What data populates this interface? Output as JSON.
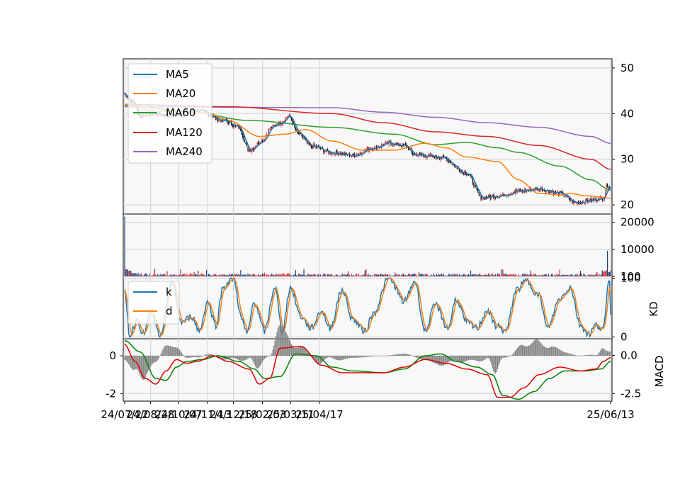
{
  "chart_data": [
    {
      "type": "candlestick",
      "panel": "price",
      "y_axis_side": "right",
      "ylim": [
        18,
        52
      ],
      "yticks": [
        20,
        30,
        40,
        50
      ],
      "grid": true,
      "legend_position": "top-left",
      "legend": [
        "MA5",
        "MA20",
        "MA60",
        "MA120",
        "MA240"
      ],
      "colors": {
        "MA5": "#1f77b4",
        "MA20": "#ff7f0e",
        "MA60": "#2ca02c",
        "MA120": "#d62728",
        "MA240": "#9467bd",
        "up": "#d62728",
        "down": "#000000"
      },
      "close_anchors": [
        [
          0,
          44.2
        ],
        [
          8,
          42.5
        ],
        [
          15,
          39.5
        ],
        [
          25,
          40
        ],
        [
          45,
          39.5
        ],
        [
          70,
          40.8
        ],
        [
          95,
          38.5
        ],
        [
          110,
          37
        ],
        [
          120,
          32
        ],
        [
          132,
          34
        ],
        [
          142,
          37
        ],
        [
          150,
          38
        ],
        [
          158,
          39.5
        ],
        [
          168,
          35.5
        ],
        [
          180,
          32.8
        ],
        [
          200,
          31.5
        ],
        [
          220,
          30.8
        ],
        [
          240,
          32.5
        ],
        [
          255,
          33.5
        ],
        [
          270,
          33
        ],
        [
          280,
          31
        ],
        [
          305,
          30.5
        ],
        [
          330,
          27
        ],
        [
          345,
          21.5
        ],
        [
          360,
          22
        ],
        [
          380,
          23
        ],
        [
          400,
          23.5
        ],
        [
          420,
          22.5
        ],
        [
          435,
          20.5
        ],
        [
          450,
          21
        ],
        [
          462,
          21.5
        ],
        [
          466,
          24.5
        ],
        [
          469,
          23.5
        ]
      ],
      "ma120_anchors": [
        [
          0,
          42
        ],
        [
          100,
          41.5
        ],
        [
          200,
          40
        ],
        [
          250,
          38
        ],
        [
          300,
          36
        ],
        [
          350,
          35
        ],
        [
          400,
          33
        ],
        [
          450,
          30
        ],
        [
          469,
          27.8
        ]
      ],
      "ma240_anchors": [
        [
          0,
          41.5
        ],
        [
          200,
          41.3
        ],
        [
          250,
          40.3
        ],
        [
          300,
          39.2
        ],
        [
          350,
          38
        ],
        [
          400,
          37
        ],
        [
          450,
          35
        ],
        [
          469,
          33.5
        ]
      ],
      "ma60_anchors": [
        [
          0,
          41.8
        ],
        [
          60,
          40.5
        ],
        [
          120,
          38.5
        ],
        [
          200,
          37
        ],
        [
          260,
          35.5
        ],
        [
          300,
          33.2
        ],
        [
          330,
          33.7
        ],
        [
          360,
          32.5
        ],
        [
          380,
          31.5
        ],
        [
          420,
          28.5
        ],
        [
          450,
          25.5
        ],
        [
          469,
          23.2
        ]
      ],
      "ma20_anchors": [
        [
          0,
          42
        ],
        [
          30,
          40.5
        ],
        [
          80,
          40.2
        ],
        [
          100,
          38.5
        ],
        [
          130,
          35
        ],
        [
          155,
          35.5
        ],
        [
          175,
          36.5
        ],
        [
          200,
          34
        ],
        [
          230,
          32
        ],
        [
          260,
          32
        ],
        [
          290,
          33.5
        ],
        [
          310,
          32.5
        ],
        [
          330,
          30.5
        ],
        [
          360,
          29.5
        ],
        [
          380,
          25.5
        ],
        [
          400,
          22.5
        ],
        [
          420,
          22.2
        ],
        [
          430,
          22.5
        ],
        [
          445,
          22
        ],
        [
          469,
          21.5
        ]
      ]
    },
    {
      "type": "bar",
      "panel": "volume",
      "ylim": [
        100,
        23000
      ],
      "yticks": [
        100,
        10000,
        20000
      ],
      "spikes": [
        [
          0,
          22000
        ],
        [
          466,
          9500
        ]
      ],
      "colors": {
        "up": "#d62728",
        "down": "#1f3f7f"
      }
    },
    {
      "type": "line",
      "panel": "KD",
      "ylabel": "KD",
      "ylim": [
        -3,
        103
      ],
      "yticks": [
        0,
        100
      ],
      "legend": [
        "k",
        "d"
      ],
      "legend_position": "top-left",
      "colors": {
        "k": "#1f77b4",
        "d": "#ff7f0e"
      },
      "k_peaks": [
        [
          0,
          75
        ],
        [
          5,
          2
        ],
        [
          12,
          30
        ],
        [
          18,
          5
        ],
        [
          25,
          40
        ],
        [
          35,
          0
        ],
        [
          45,
          95
        ],
        [
          55,
          25
        ],
        [
          65,
          35
        ],
        [
          72,
          10
        ],
        [
          80,
          60
        ],
        [
          88,
          20
        ],
        [
          95,
          85
        ],
        [
          105,
          100
        ],
        [
          113,
          30
        ],
        [
          118,
          5
        ],
        [
          125,
          60
        ],
        [
          135,
          10
        ],
        [
          145,
          85
        ],
        [
          152,
          10
        ],
        [
          160,
          85
        ],
        [
          170,
          35
        ],
        [
          180,
          15
        ],
        [
          190,
          45
        ],
        [
          198,
          15
        ],
        [
          210,
          80
        ],
        [
          220,
          30
        ],
        [
          232,
          10
        ],
        [
          240,
          40
        ],
        [
          255,
          100
        ],
        [
          270,
          60
        ],
        [
          280,
          95
        ],
        [
          290,
          10
        ],
        [
          300,
          55
        ],
        [
          312,
          15
        ],
        [
          320,
          65
        ],
        [
          330,
          25
        ],
        [
          340,
          15
        ],
        [
          350,
          45
        ],
        [
          358,
          20
        ],
        [
          368,
          10
        ],
        [
          378,
          80
        ],
        [
          388,
          95
        ],
        [
          400,
          70
        ],
        [
          408,
          15
        ],
        [
          420,
          65
        ],
        [
          430,
          85
        ],
        [
          440,
          20
        ],
        [
          448,
          5
        ],
        [
          455,
          20
        ],
        [
          462,
          15
        ],
        [
          468,
          100
        ],
        [
          469,
          40
        ]
      ]
    },
    {
      "type": "line",
      "panel": "MACD",
      "ylabel": "MACD",
      "ylim_left": [
        -2.4,
        0.9
      ],
      "yticks_left": [
        -2,
        0
      ],
      "ylim_right": [
        -3.0,
        1.1
      ],
      "yticks_right": [
        -2.5,
        0.0
      ],
      "colors": {
        "dif": "#e00000",
        "dea": "#008000",
        "hist": "#808080"
      },
      "dif_anchors": [
        [
          0,
          0.6
        ],
        [
          10,
          -0.3
        ],
        [
          20,
          -1.2
        ],
        [
          30,
          -1.5
        ],
        [
          40,
          -0.8
        ],
        [
          50,
          -0.2
        ],
        [
          60,
          -0.4
        ],
        [
          70,
          -0.3
        ],
        [
          85,
          0
        ],
        [
          100,
          -0.3
        ],
        [
          120,
          -0.7
        ],
        [
          130,
          -1.5
        ],
        [
          140,
          -1.2
        ],
        [
          150,
          0.4
        ],
        [
          170,
          0.5
        ],
        [
          190,
          -0.5
        ],
        [
          210,
          -0.9
        ],
        [
          230,
          -0.9
        ],
        [
          250,
          -0.9
        ],
        [
          270,
          -0.6
        ],
        [
          290,
          -0.2
        ],
        [
          310,
          -0.4
        ],
        [
          330,
          -0.7
        ],
        [
          350,
          -1.0
        ],
        [
          360,
          -2.2
        ],
        [
          372,
          -2.2
        ],
        [
          385,
          -1.7
        ],
        [
          400,
          -1.0
        ],
        [
          420,
          -0.6
        ],
        [
          440,
          -0.8
        ],
        [
          455,
          -0.7
        ],
        [
          462,
          -0.3
        ],
        [
          469,
          -0.1
        ]
      ],
      "dea_anchors": [
        [
          0,
          0.8
        ],
        [
          15,
          0.2
        ],
        [
          30,
          -1.2
        ],
        [
          40,
          -1.3
        ],
        [
          50,
          -0.6
        ],
        [
          60,
          -0.3
        ],
        [
          75,
          -0.2
        ],
        [
          90,
          0
        ],
        [
          110,
          -0.3
        ],
        [
          125,
          -0.7
        ],
        [
          135,
          -1.2
        ],
        [
          150,
          -1.1
        ],
        [
          165,
          0.1
        ],
        [
          185,
          0
        ],
        [
          200,
          -0.6
        ],
        [
          220,
          -0.8
        ],
        [
          250,
          -0.9
        ],
        [
          270,
          -0.7
        ],
        [
          290,
          0
        ],
        [
          305,
          0.1
        ],
        [
          320,
          -0.3
        ],
        [
          340,
          -0.6
        ],
        [
          355,
          -1.0
        ],
        [
          365,
          -2.1
        ],
        [
          380,
          -2.3
        ],
        [
          395,
          -1.9
        ],
        [
          410,
          -1.2
        ],
        [
          425,
          -0.8
        ],
        [
          445,
          -0.8
        ],
        [
          460,
          -0.7
        ],
        [
          469,
          -0.3
        ]
      ]
    }
  ],
  "x_axis": {
    "tick_labels": [
      "24/07/22",
      "24/08/28",
      "24/10/07",
      "24/11/13",
      "24/12/18",
      "25/02/03",
      "25/03/11",
      "25/04/17",
      "25/06/13"
    ],
    "tick_index": [
      0,
      25,
      52,
      80,
      105,
      133,
      160,
      188,
      469
    ],
    "n_points": 470
  }
}
